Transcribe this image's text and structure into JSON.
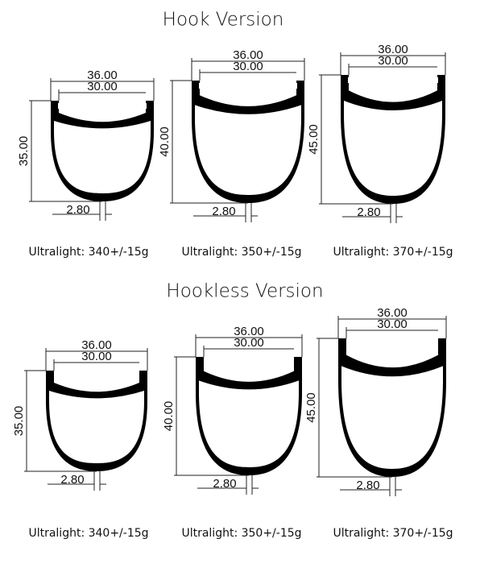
{
  "sections": [
    {
      "title": "Hook Version",
      "rims": [
        {
          "outer_width": "36.00",
          "inner_width": "30.00",
          "depth": "35.00",
          "thickness": "2.80",
          "weight": "Ultralight: 340+/-15g"
        },
        {
          "outer_width": "36.00",
          "inner_width": "30.00",
          "depth": "40.00",
          "thickness": "2.80",
          "weight": "Ultralight: 350+/-15g"
        },
        {
          "outer_width": "36.00",
          "inner_width": "30.00",
          "depth": "45.00",
          "thickness": "2.80",
          "weight": "Ultralight: 370+/-15g"
        }
      ]
    },
    {
      "title": "Hookless Version",
      "rims": [
        {
          "outer_width": "36.00",
          "inner_width": "30.00",
          "depth": "35.00",
          "thickness": "2.80",
          "weight": "Ultralight: 340+/-15g"
        },
        {
          "outer_width": "36.00",
          "inner_width": "30.00",
          "depth": "40.00",
          "thickness": "2.80",
          "weight": "Ultralight: 350+/-15g"
        },
        {
          "outer_width": "36.00",
          "inner_width": "30.00",
          "depth": "45.00",
          "thickness": "2.80",
          "weight": "Ultralight: 370+/-15g"
        }
      ]
    }
  ]
}
